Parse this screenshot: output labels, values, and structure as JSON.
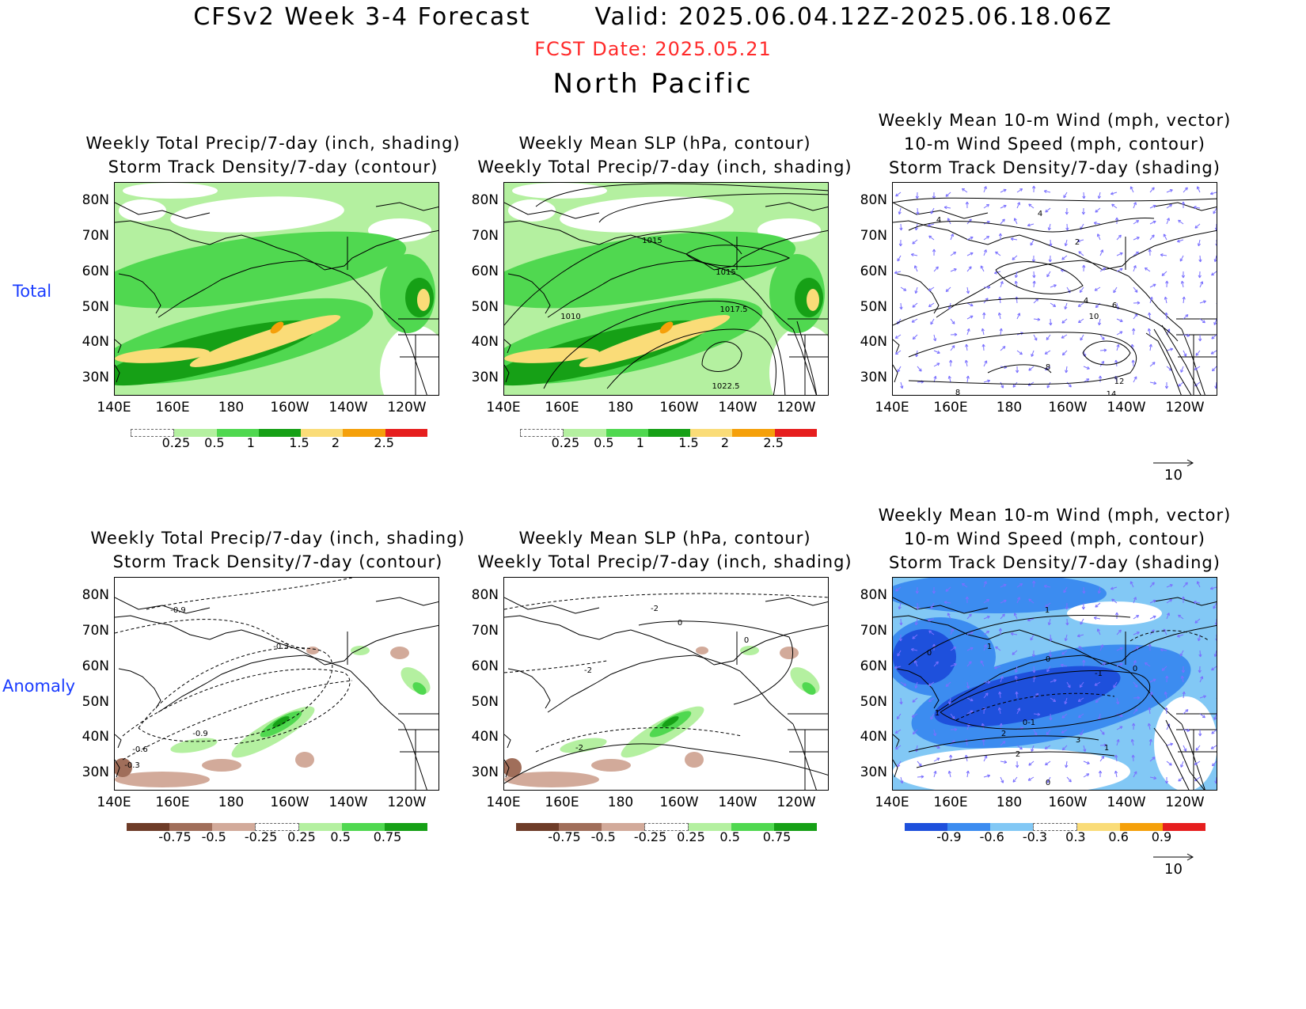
{
  "header": {
    "title": "CFSv2 Week 3-4 Forecast       Valid: 2025.06.04.12Z-2025.06.18.06Z",
    "fcst_date": "FCST Date: 2025.05.21",
    "region": "North Pacific"
  },
  "rows": {
    "total": "Total",
    "anomaly": "Anomaly"
  },
  "panel_titles": {
    "precip": "Weekly Total Precip/7-day (inch, shading)\nStorm Track Density/7-day (contour)",
    "slp": "Weekly Mean SLP (hPa, contour)\nWeekly Total Precip/7-day (inch, shading)",
    "wind": "Weekly Mean 10-m Wind (mph, vector)\n10-m Wind Speed (mph, contour)\nStorm Track Density/7-day (shading)"
  },
  "axes": {
    "lat_labels": [
      "80N",
      "70N",
      "60N",
      "50N",
      "40N",
      "30N"
    ],
    "lon_labels": [
      "140E",
      "160E",
      "180",
      "160W",
      "140W",
      "120W"
    ]
  },
  "colorbars": {
    "total_precip": {
      "labels": [
        "0.25",
        "0.5",
        "1",
        "1.5",
        "2",
        "2.5"
      ],
      "colors": [
        "#ffffff",
        "#b4f0a0",
        "#50d850",
        "#16a016",
        "#fadc78",
        "#f5a00a",
        "#e61e1e"
      ]
    },
    "anom_precip": {
      "labels": [
        "-0.75",
        "-0.5",
        "-0.25",
        "0.25",
        "0.5",
        "0.75"
      ],
      "colors": [
        "#6e3c28",
        "#a06e5a",
        "#d2aa9a",
        "#ffffff",
        "#b4f0a0",
        "#50d850",
        "#16a016"
      ]
    },
    "anom_track": {
      "labels": [
        "-0.9",
        "-0.6",
        "-0.3",
        "0.3",
        "0.6",
        "0.9"
      ],
      "colors": [
        "#1e50dc",
        "#3c8cf0",
        "#82c8f5",
        "#ffffff",
        "#fadc78",
        "#f5a00a",
        "#e61e1e"
      ]
    }
  },
  "contour_labels": {
    "slp_total": [
      "1015",
      "1015",
      "1010",
      "1017.5",
      "1022.5"
    ],
    "wind_total": [
      "4",
      "4",
      "2",
      "4",
      "6",
      "10",
      "8",
      "12",
      "14",
      "8"
    ],
    "track_anom": [
      "-0.9",
      "-0.3",
      "-0.9",
      "-0.6",
      "-0.3"
    ],
    "slp_anom": [
      "-2",
      "0",
      "0",
      "-2",
      "-2"
    ],
    "wind_anom": [
      "1",
      "0",
      "1",
      "0",
      "-1",
      "0",
      "1",
      "2",
      "0-1",
      "3",
      "1",
      "2",
      "0"
    ]
  },
  "vector_reference": "10",
  "colors": {
    "fcst_date": "#ff2a2a",
    "row_label": "#1a3cff",
    "vector": "#7a70ff"
  }
}
